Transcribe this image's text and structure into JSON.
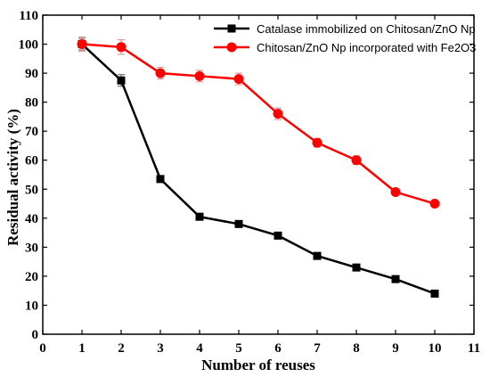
{
  "chart_data": {
    "type": "line",
    "title": "",
    "xlabel": "Number of reuses",
    "ylabel": "Residual activity (%)",
    "xlim": [
      0,
      11
    ],
    "ylim": [
      0,
      110
    ],
    "xticks": [
      0,
      1,
      2,
      3,
      4,
      5,
      6,
      7,
      8,
      9,
      10,
      11
    ],
    "yticks": [
      0,
      10,
      20,
      30,
      40,
      50,
      60,
      70,
      80,
      90,
      100,
      110
    ],
    "grid": false,
    "legend_position": "top-right",
    "x": [
      1,
      2,
      3,
      4,
      5,
      6,
      7,
      8,
      9,
      10
    ],
    "series": [
      {
        "name": "Catalase immobilized on Chitosan/ZnO Np",
        "color": "#000000",
        "marker": "square",
        "values": [
          100,
          87.5,
          53.5,
          40.5,
          38,
          34,
          27,
          23,
          19,
          14
        ],
        "errors": [
          2,
          2,
          1,
          1,
          1,
          1,
          1,
          1,
          1,
          1
        ]
      },
      {
        "name": "Chitosan/ZnO Np incorporated with Fe2O3",
        "color": "#ff0000",
        "marker": "circle",
        "values": [
          100,
          99,
          90,
          89,
          88,
          76,
          66,
          60,
          49,
          45
        ],
        "errors": [
          2.5,
          2.5,
          2,
          2,
          2,
          2,
          1.5,
          1.5,
          1,
          1
        ]
      }
    ]
  }
}
